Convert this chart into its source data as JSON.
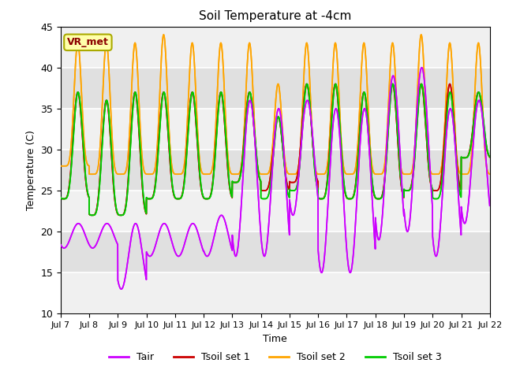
{
  "title": "Soil Temperature at -4cm",
  "xlabel": "Time",
  "ylabel": "Temperature (C)",
  "ylim": [
    10,
    45
  ],
  "yticks": [
    10,
    15,
    20,
    25,
    30,
    35,
    40,
    45
  ],
  "xlim_start": 0,
  "xlim_end": 15,
  "xtick_labels": [
    "Jul 7",
    "Jul 8",
    "Jul 9",
    "Jul 10",
    "Jul 11",
    "Jul 12",
    "Jul 13",
    "Jul 14",
    "Jul 15",
    "Jul 16",
    "Jul 17",
    "Jul 18",
    "Jul 19",
    "Jul 20",
    "Jul 21",
    "Jul 22"
  ],
  "colors": {
    "Tair": "#CC00FF",
    "Tsoil1": "#CC0000",
    "Tsoil2": "#FFA500",
    "Tsoil3": "#00CC00"
  },
  "legend_labels": [
    "Tair",
    "Tsoil set 1",
    "Tsoil set 2",
    "Tsoil set 3"
  ],
  "annotation_text": "VR_met",
  "annotation_fg": "#8B0000",
  "annotation_bg": "#FFFFAA",
  "annotation_edge": "#AAAA00",
  "fig_bg_color": "#FFFFFF",
  "axes_bg_color": "#E8E8E8",
  "grid_color": "#FFFFFF",
  "num_days": 15,
  "ppd": 240,
  "tair_min_vals": [
    18,
    18,
    13,
    17,
    17,
    17,
    17,
    17,
    22,
    15,
    15,
    19,
    20,
    17,
    21
  ],
  "tair_max_vals": [
    21,
    21,
    21,
    21,
    21,
    22,
    36,
    35,
    36,
    35,
    35,
    39,
    40,
    35,
    36
  ],
  "tsoil1_min_vals": [
    24,
    22,
    22,
    24,
    24,
    24,
    26,
    25,
    26,
    24,
    24,
    24,
    25,
    25,
    29
  ],
  "tsoil1_max_vals": [
    37,
    36,
    37,
    37,
    37,
    37,
    37,
    34,
    38,
    38,
    37,
    38,
    38,
    38,
    37
  ],
  "tsoil2_min_vals": [
    28,
    27,
    27,
    27,
    27,
    27,
    27,
    27,
    27,
    27,
    27,
    27,
    27,
    27,
    27
  ],
  "tsoil2_max_vals": [
    43,
    43,
    43,
    44,
    43,
    43,
    43,
    38,
    43,
    43,
    43,
    43,
    44,
    43,
    43
  ],
  "tsoil3_min_vals": [
    24,
    22,
    22,
    24,
    24,
    24,
    26,
    24,
    25,
    24,
    24,
    24,
    25,
    24,
    29
  ],
  "tsoil3_max_vals": [
    37,
    36,
    37,
    37,
    37,
    37,
    37,
    34,
    38,
    38,
    37,
    38,
    38,
    37,
    37
  ]
}
